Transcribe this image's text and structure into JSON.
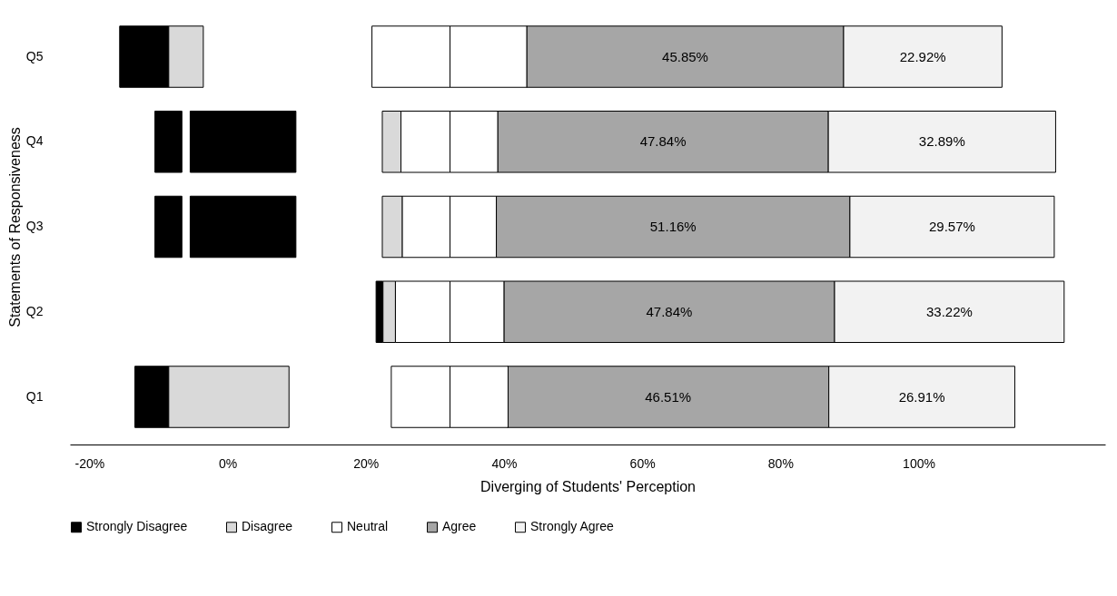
{
  "chart_data": {
    "type": "bar",
    "orientation": "horizontal",
    "xlabel": "Diverging of Students' Perception",
    "ylabel": "Statements of Responsiveness",
    "categories": [
      "Q5",
      "Q4",
      "Q3",
      "Q2",
      "Q1"
    ],
    "series": [
      {
        "name": "Strongly Disagree",
        "color": "#000000",
        "base": [
          -15.6,
          -10.5,
          -10.5,
          21.5,
          -13.4
        ],
        "values": [
          7.1,
          3.9,
          3.9,
          1.0,
          4.9
        ]
      },
      {
        "color": "#000000",
        "base": [
          null,
          -5.4,
          -5.4,
          null,
          null
        ],
        "values": [
          null,
          15.3,
          15.3,
          null,
          null
        ]
      },
      {
        "name": "Disagree",
        "color": "#d9d9d9",
        "base": [
          -8.5,
          22.4,
          22.4,
          22.5,
          -8.5
        ],
        "values": [
          5.0,
          2.7,
          2.9,
          1.8,
          17.4
        ]
      },
      {
        "name": "Neutral",
        "color": "#ffffff",
        "base": [
          20.9,
          25.1,
          25.3,
          24.3,
          23.7
        ],
        "values": [
          11.3,
          7.1,
          6.9,
          7.9,
          8.5
        ]
      },
      {
        "color": "#ffffff",
        "base": [
          32.2,
          32.2,
          32.2,
          32.2,
          32.2
        ],
        "values": [
          11.1,
          6.9,
          6.7,
          7.8,
          8.4
        ]
      },
      {
        "name": "Agree",
        "color": "#a6a6a6",
        "base": [
          43.3,
          39.1,
          38.9,
          40.0,
          40.5
        ],
        "values": [
          45.85,
          47.84,
          51.16,
          47.84,
          46.51
        ],
        "value_labels": [
          "45.85%",
          "47.84%",
          "51.16%",
          "47.84%",
          "46.51%"
        ]
      },
      {
        "name": "Strongly Agree",
        "color": "#f2f2f2",
        "base": [
          89.15,
          86.94,
          90.06,
          87.84,
          87.01
        ],
        "values": [
          22.92,
          32.89,
          29.57,
          33.22,
          26.91
        ],
        "value_labels": [
          "22.92%",
          "32.89%",
          "29.57%",
          "33.22%",
          "26.91%"
        ]
      }
    ],
    "xlim": [
      -22.8,
      127
    ],
    "xticks": [
      {
        "value": -20,
        "label": "-20%"
      },
      {
        "value": 0,
        "label": "0%"
      },
      {
        "value": 20,
        "label": "20%"
      },
      {
        "value": 40,
        "label": "40%"
      },
      {
        "value": 60,
        "label": "60%"
      },
      {
        "value": 80,
        "label": "80%"
      },
      {
        "value": 100,
        "label": "100%"
      }
    ],
    "grid": false,
    "legend": "bottom"
  }
}
